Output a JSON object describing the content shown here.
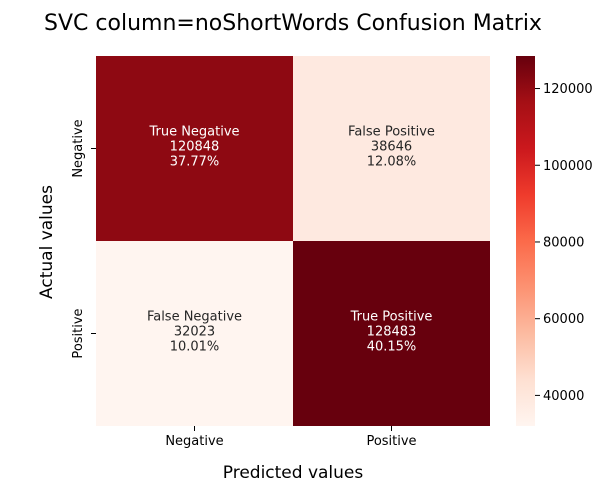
{
  "chart_data": {
    "type": "heatmap",
    "title": "SVC column=noShortWords Confusion Matrix",
    "xlabel": "Predicted values",
    "ylabel": "Actual values",
    "x_categories": [
      "Negative",
      "Positive"
    ],
    "y_categories": [
      "Negative",
      "Positive"
    ],
    "cells": [
      {
        "row": 0,
        "col": 0,
        "label": "True Negative",
        "count": "120848",
        "percent": "37.77%",
        "value": 120848
      },
      {
        "row": 0,
        "col": 1,
        "label": "False Positive",
        "count": "38646",
        "percent": "12.08%",
        "value": 38646
      },
      {
        "row": 1,
        "col": 0,
        "label": "False Negative",
        "count": "32023",
        "percent": "10.01%",
        "value": 32023
      },
      {
        "row": 1,
        "col": 1,
        "label": "True Positive",
        "count": "128483",
        "percent": "40.15%",
        "value": 128483
      }
    ],
    "colorbar": {
      "colormap": "Reds",
      "min": 32023,
      "max": 128483,
      "ticks": [
        "120000",
        "100000",
        "80000",
        "60000",
        "40000"
      ],
      "tick_values": [
        120000,
        100000,
        80000,
        60000,
        40000
      ]
    },
    "colors": {
      "low": "#fff5f0",
      "high": "#67000d",
      "text_dark": "#262626",
      "text_light": "#ffffff"
    }
  }
}
